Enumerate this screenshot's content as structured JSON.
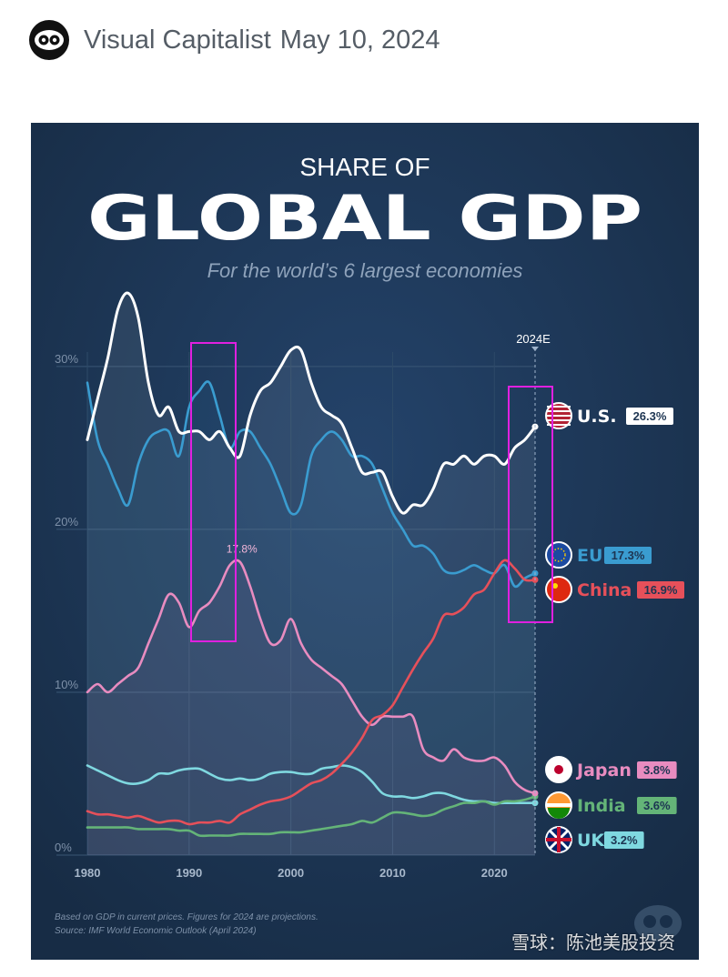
{
  "post": {
    "author": "Visual Capitalist",
    "date": "May 10, 2024",
    "watermark": "雪球：陈池美股投资"
  },
  "chart_data": {
    "type": "line",
    "title_line1": "SHARE OF",
    "title_line2": "GLOBAL GDP",
    "subtitle": "For the world’s 6 largest economies",
    "y_ticks": [
      "30%",
      "20%",
      "10%",
      "0%"
    ],
    "x_ticks": [
      "1980",
      "1990",
      "2000",
      "2010",
      "2020"
    ],
    "projection_label": "2024E",
    "peak_label": "17.8%",
    "footnote_line1": "Based on GDP in current prices. Figures for 2024 are projections.",
    "footnote_line2": "Source: IMF World Economic Outlook (April 2024)",
    "xlim": [
      1980,
      2024
    ],
    "ylim": [
      0,
      32
    ],
    "x": [
      1980,
      1981,
      1982,
      1983,
      1984,
      1985,
      1986,
      1987,
      1988,
      1989,
      1990,
      1991,
      1992,
      1993,
      1994,
      1995,
      1996,
      1997,
      1998,
      1999,
      2000,
      2001,
      2002,
      2003,
      2004,
      2005,
      2006,
      2007,
      2008,
      2009,
      2010,
      2011,
      2012,
      2013,
      2014,
      2015,
      2016,
      2017,
      2018,
      2019,
      2020,
      2021,
      2022,
      2023,
      2024
    ],
    "series": [
      {
        "name": "U.S.",
        "label": "U.S.",
        "value_label": "26.3%",
        "color": "#ffffff",
        "values": [
          25.5,
          28,
          30.5,
          33.5,
          34.5,
          33,
          29,
          27,
          27.5,
          26,
          26,
          26,
          25.5,
          26,
          25,
          24.5,
          27,
          28.5,
          29,
          30,
          31,
          31,
          29,
          27.5,
          27,
          26.5,
          25,
          23.5,
          23.5,
          23.5,
          22,
          21,
          21.5,
          21.5,
          22.5,
          24,
          24,
          24.5,
          24,
          24.5,
          24.5,
          24,
          25,
          25.5,
          26.3
        ]
      },
      {
        "name": "EU",
        "label": "EU",
        "value_label": "17.3%",
        "color": "#3a9cd0",
        "values": [
          29,
          25.5,
          24,
          22.5,
          21.5,
          24,
          25.5,
          26,
          26,
          24.5,
          27.5,
          28.5,
          29,
          27,
          25,
          26,
          26,
          25,
          24,
          22.5,
          21,
          21.5,
          24.5,
          25.5,
          26,
          25.5,
          24.5,
          24.5,
          24,
          22.5,
          21,
          20,
          19,
          19,
          18.5,
          17.5,
          17.3,
          17.5,
          17.8,
          17.5,
          17.3,
          17.8,
          16.5,
          17,
          17.3
        ]
      },
      {
        "name": "China",
        "label": "China",
        "value_label": "16.9%",
        "color": "#e6505a",
        "values": [
          2.7,
          2.5,
          2.5,
          2.4,
          2.3,
          2.4,
          2.2,
          2,
          2.1,
          2.1,
          1.9,
          2,
          2,
          2.1,
          2,
          2.5,
          2.8,
          3.1,
          3.3,
          3.4,
          3.6,
          4,
          4.4,
          4.6,
          5,
          5.6,
          6.3,
          7.2,
          8.3,
          8.6,
          9.2,
          10.3,
          11.4,
          12.4,
          13.3,
          14.7,
          14.8,
          15.2,
          16,
          16.3,
          17.3,
          18.1,
          17.6,
          16.9,
          16.9
        ]
      },
      {
        "name": "Japan",
        "label": "Japan",
        "value_label": "3.8%",
        "color": "#e88cc0",
        "values": [
          10,
          10.5,
          10,
          10.5,
          11,
          11.5,
          13,
          14.5,
          16,
          15.5,
          14,
          15,
          15.5,
          16.5,
          17.8,
          18,
          16.5,
          14.5,
          13,
          13.2,
          14.5,
          13,
          12,
          11.5,
          11,
          10.5,
          9.5,
          8.5,
          8,
          8.5,
          8.5,
          8.5,
          8.5,
          6.5,
          6,
          5.8,
          6.5,
          6,
          5.8,
          5.8,
          6,
          5.5,
          4.5,
          4,
          3.8
        ]
      },
      {
        "name": "India",
        "label": "India",
        "value_label": "3.6%",
        "color": "#64b478",
        "values": [
          1.7,
          1.7,
          1.7,
          1.7,
          1.7,
          1.6,
          1.6,
          1.6,
          1.6,
          1.5,
          1.5,
          1.2,
          1.2,
          1.2,
          1.2,
          1.3,
          1.3,
          1.3,
          1.3,
          1.4,
          1.4,
          1.4,
          1.5,
          1.6,
          1.7,
          1.8,
          1.9,
          2.1,
          2.0,
          2.3,
          2.6,
          2.6,
          2.5,
          2.4,
          2.5,
          2.8,
          3.0,
          3.2,
          3.2,
          3.3,
          3.1,
          3.3,
          3.3,
          3.4,
          3.6
        ]
      },
      {
        "name": "UK",
        "label": "UK",
        "value_label": "3.2%",
        "color": "#7fd8e0",
        "values": [
          5.5,
          5.2,
          4.9,
          4.6,
          4.4,
          4.4,
          4.6,
          5,
          5,
          5.2,
          5.3,
          5.3,
          5,
          4.7,
          4.6,
          4.7,
          4.6,
          4.7,
          5,
          5.1,
          5.1,
          5,
          5,
          5.3,
          5.4,
          5.5,
          5.4,
          5.1,
          4.5,
          3.8,
          3.6,
          3.6,
          3.5,
          3.6,
          3.8,
          3.8,
          3.6,
          3.4,
          3.3,
          3.3,
          3.2,
          3.2,
          3.2,
          3.2,
          3.2
        ]
      }
    ]
  }
}
